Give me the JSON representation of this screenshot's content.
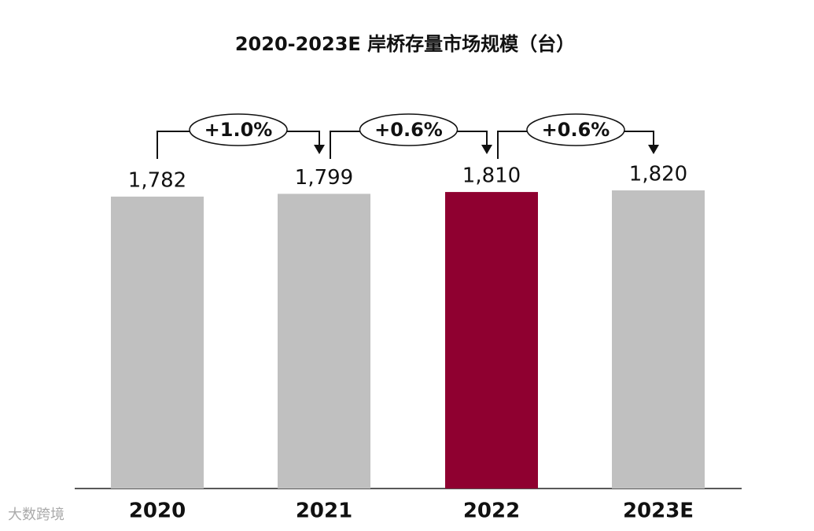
{
  "chart_data": {
    "type": "bar",
    "title": "2020-2023E 岸桥存量市场规模（台）",
    "categories": [
      "2020",
      "2021",
      "2022",
      "2023E"
    ],
    "values": [
      1782,
      1799,
      1810,
      1820
    ],
    "value_labels": [
      "1,782",
      "1,799",
      "1,810",
      "1,820"
    ],
    "colors": [
      "#c0c0c0",
      "#c0c0c0",
      "#8f0030",
      "#c0c0c0"
    ],
    "annotations": [
      "+1.0%",
      "+0.6%",
      "+0.6%"
    ],
    "source_logo": "大数跨境"
  }
}
